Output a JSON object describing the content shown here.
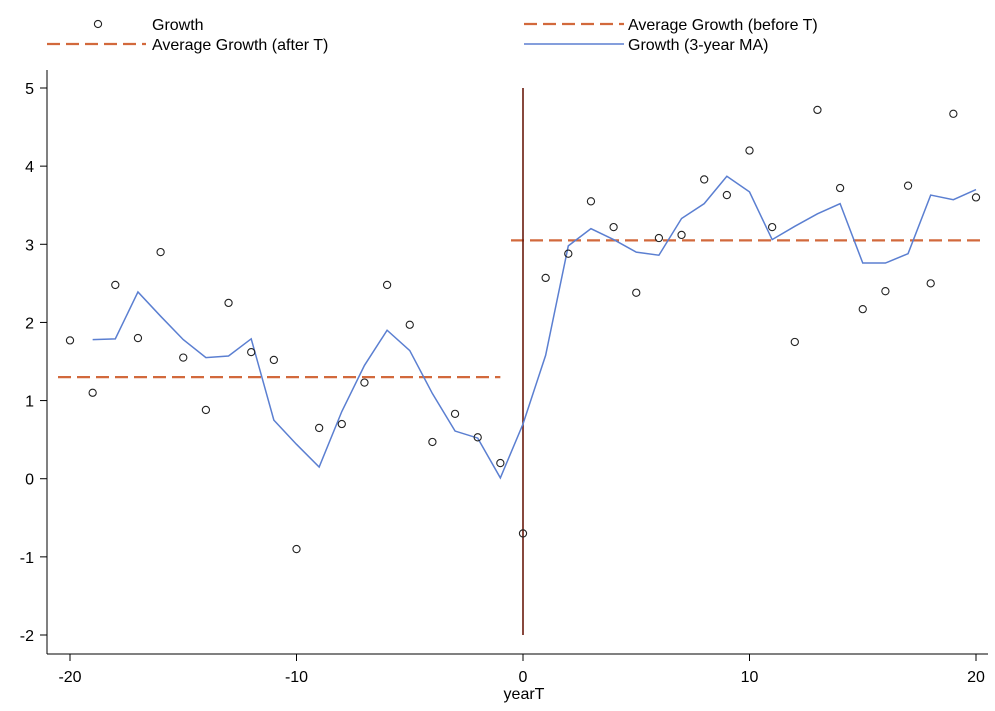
{
  "chart_data": {
    "type": "scatter",
    "title": "",
    "xlabel": "yearT",
    "ylabel": "",
    "xlim": [
      -20,
      20
    ],
    "ylim": [
      -2,
      5
    ],
    "xticks": [
      -20,
      -10,
      0,
      10,
      20
    ],
    "yticks": [
      -2,
      -1,
      0,
      1,
      2,
      3,
      4,
      5
    ],
    "grid": false,
    "legend": "top",
    "colors": {
      "points": "#222222",
      "average": "#d2693c",
      "moving_average": "#5b7fd1",
      "axis": "#000000",
      "vertical_line": "#6b1a0d"
    },
    "legend_entries": {
      "growth": "Growth",
      "avg_after": "Average Growth (after T)",
      "avg_before": "Average Growth (before T)",
      "ma": "Growth (3-year MA)"
    },
    "vertical_line_x": 0,
    "series": [
      {
        "name": "Growth",
        "type": "scatter",
        "x": [
          -20,
          -19,
          -18,
          -17,
          -16,
          -15,
          -14,
          -13,
          -12,
          -11,
          -10,
          -9,
          -8,
          -7,
          -6,
          -5,
          -4,
          -3,
          -2,
          -1,
          0,
          1,
          2,
          3,
          4,
          5,
          6,
          7,
          8,
          9,
          10,
          11,
          12,
          13,
          14,
          15,
          16,
          17,
          18,
          19,
          20
        ],
        "y": [
          1.77,
          1.1,
          2.48,
          1.8,
          2.9,
          1.55,
          0.88,
          2.25,
          1.62,
          1.52,
          -0.9,
          0.65,
          0.7,
          1.23,
          2.48,
          1.97,
          0.47,
          0.83,
          0.53,
          0.2,
          -0.7,
          2.57,
          2.88,
          3.55,
          3.22,
          2.38,
          3.08,
          3.12,
          3.83,
          3.63,
          4.2,
          3.22,
          1.75,
          4.72,
          3.72,
          2.17,
          2.4,
          3.75,
          2.5,
          4.67,
          3.6
        ]
      },
      {
        "name": "Average Growth (before T)",
        "type": "line",
        "dashed": true,
        "x": [
          -20,
          -1
        ],
        "y": [
          1.3,
          1.3
        ]
      },
      {
        "name": "Average Growth (after T)",
        "type": "line",
        "dashed": true,
        "x": [
          0,
          20
        ],
        "y": [
          3.05,
          3.05
        ]
      },
      {
        "name": "Growth (3-year MA)",
        "type": "line",
        "x": [
          -19,
          -18,
          -17,
          -16,
          -15,
          -14,
          -13,
          -12,
          -11,
          -10,
          -9,
          -8,
          -7,
          -6,
          -5,
          -4,
          -3,
          -2,
          -1,
          0,
          1,
          2,
          3,
          4,
          5,
          6,
          7,
          8,
          9,
          10,
          11,
          12,
          13,
          14,
          15,
          16,
          17,
          18,
          19,
          20
        ],
        "y": [
          1.78,
          1.79,
          2.39,
          2.08,
          1.78,
          1.55,
          1.57,
          1.79,
          0.75,
          0.44,
          0.15,
          0.86,
          1.45,
          1.9,
          1.64,
          1.09,
          0.61,
          0.52,
          0.01,
          0.7,
          1.58,
          2.98,
          3.2,
          3.06,
          2.9,
          2.86,
          3.33,
          3.52,
          3.87,
          3.67,
          3.06,
          3.23,
          3.39,
          3.52,
          2.76,
          2.76,
          2.88,
          3.63,
          3.57,
          3.7
        ]
      }
    ]
  }
}
